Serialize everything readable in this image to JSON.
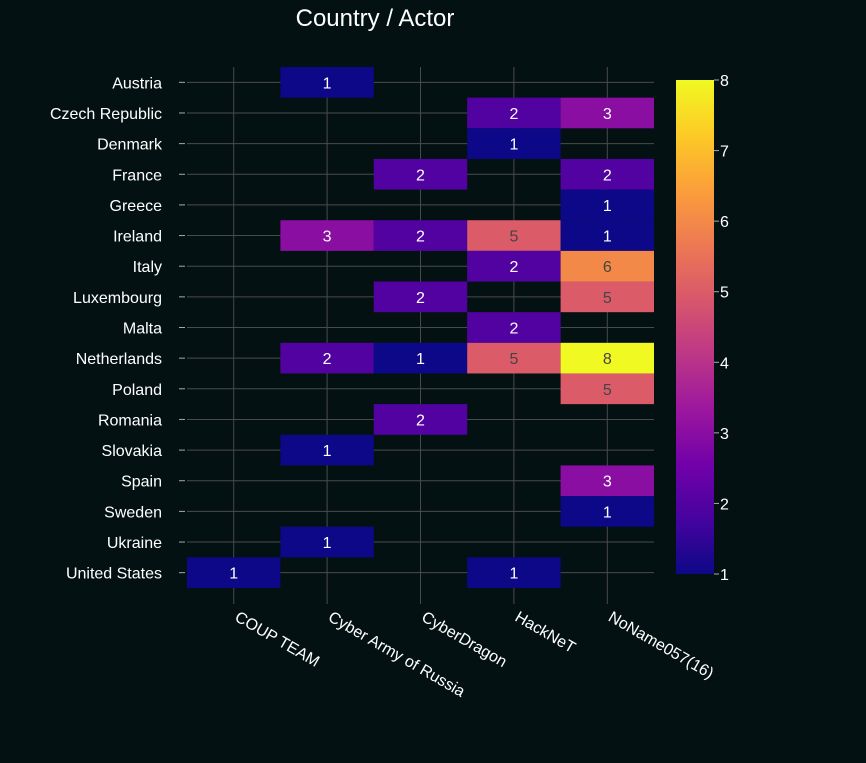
{
  "chart_data": {
    "type": "heatmap",
    "title": "Country / Actor",
    "x_categories": [
      "COUP TEAM",
      "Cyber Army of Russia",
      "CyberDragon",
      "HackNeT",
      "NoName057(16)"
    ],
    "y_categories": [
      "Austria",
      "Czech Republic",
      "Denmark",
      "France",
      "Greece",
      "Ireland",
      "Italy",
      "Luxembourg",
      "Malta",
      "Netherlands",
      "Poland",
      "Romania",
      "Slovakia",
      "Spain",
      "Sweden",
      "Ukraine",
      "United States"
    ],
    "values": [
      [
        null,
        1,
        null,
        null,
        null
      ],
      [
        null,
        null,
        null,
        2,
        3
      ],
      [
        null,
        null,
        null,
        1,
        null
      ],
      [
        null,
        null,
        2,
        null,
        2
      ],
      [
        null,
        null,
        null,
        null,
        1
      ],
      [
        null,
        3,
        2,
        5,
        1
      ],
      [
        null,
        null,
        null,
        2,
        6
      ],
      [
        null,
        null,
        2,
        null,
        5
      ],
      [
        null,
        null,
        null,
        2,
        null
      ],
      [
        null,
        2,
        1,
        5,
        8
      ],
      [
        null,
        null,
        null,
        null,
        5
      ],
      [
        null,
        null,
        2,
        null,
        null
      ],
      [
        null,
        1,
        null,
        null,
        null
      ],
      [
        null,
        null,
        null,
        null,
        3
      ],
      [
        null,
        null,
        null,
        null,
        1
      ],
      [
        null,
        1,
        null,
        null,
        null
      ],
      [
        1,
        null,
        null,
        1,
        null
      ]
    ],
    "colorscale": "plasma",
    "zmin": 1,
    "zmax": 8,
    "colorbar_ticks": [
      1,
      2,
      3,
      4,
      5,
      6,
      7,
      8
    ],
    "grid": true
  },
  "colors": {
    "background": "#041113",
    "text": "#ffffff",
    "grid": "#4a4a4a"
  }
}
